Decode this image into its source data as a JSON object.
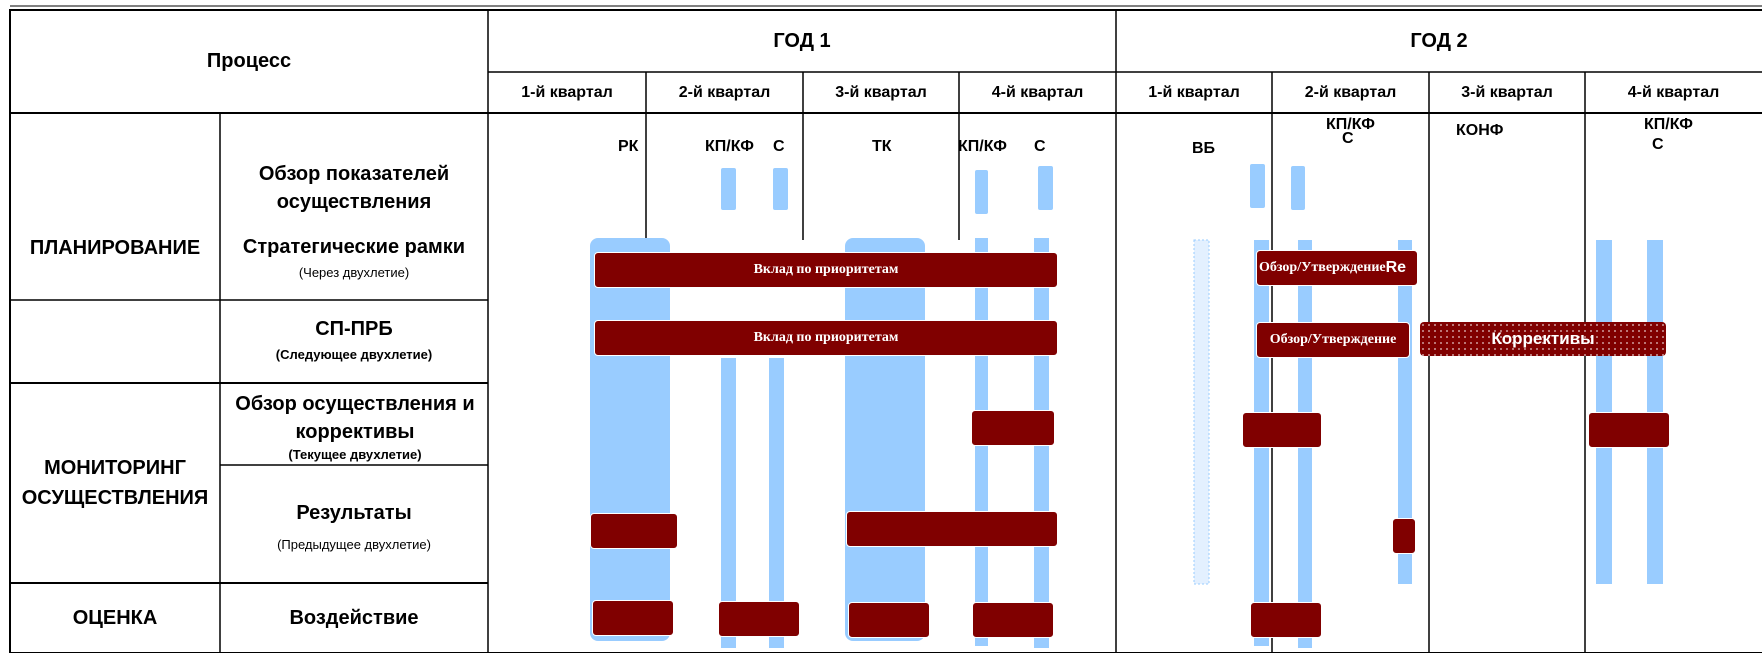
{
  "header": {
    "process": "Процесс",
    "year1": "ГОД 1",
    "year2": "ГОД 2",
    "quarters": [
      "1-й квартал",
      "2-й квартал",
      "3-й квартал",
      "4-й квартал",
      "1-й квартал",
      "2-й квартал",
      "3-й квартал",
      "4-й квартал"
    ]
  },
  "rows": {
    "planning": "ПЛАНИРОВАНИЕ",
    "monitoring": "МОНИТОРИНГ ОСУЩЕСТВЛЕНИЯ",
    "evaluation": "ОЦЕНКА",
    "perf_review": "Обзор показателей осуществления",
    "strategic": "Стратегические рамки",
    "strategic_note": "(Через двухлетие)",
    "sp_prb": "СП-ПРБ",
    "sp_prb_note": "(Следующее двухлетие)",
    "impl_review": "Обзор осуществления и коррективы",
    "impl_note": "(Текущее двухлетие)",
    "results": "Результаты",
    "results_note": "(Предыдущее двухлетие)",
    "impact": "Воздействие"
  },
  "markers": {
    "rk": "РК",
    "kpkf1": "КП/КФ",
    "c1": "С",
    "tk": "ТК",
    "kpkf2": "КП/КФ",
    "c2": "С",
    "vb": "ВБ",
    "kpkf3": "КП/КФ",
    "c3": "С",
    "konf": "КОНФ",
    "kpkf4": "КП/КФ",
    "c4": "С"
  },
  "bars": {
    "contrib1": "Вклад по приоритетам",
    "contrib2": "Вклад по приоритетам",
    "review1": "Обзор/Утверждение",
    "review1_tail": "Re",
    "review2": "Обзор/Утверждение",
    "adjust": "Коррективы"
  },
  "colors": {
    "light_blue": "#99ccff",
    "dark_red": "#800000",
    "grid": "#000000"
  }
}
